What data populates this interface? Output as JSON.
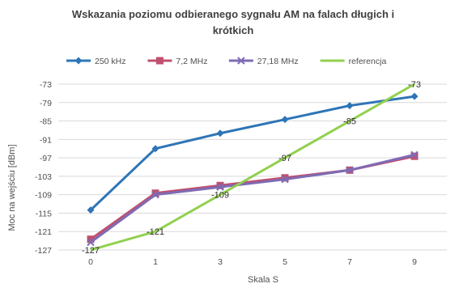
{
  "chart_data": {
    "type": "line",
    "title_line1": "Wskazania poziomu odbieranego sygnału AM na falach długich i",
    "title_line2": "krótkich",
    "xlabel": "Skala S",
    "ylabel": "Moc na wejściu [dBm]",
    "categories": [
      "0",
      "1",
      "3",
      "5",
      "7",
      "9"
    ],
    "ylim": [
      -127,
      -73
    ],
    "yticks": [
      -73,
      -79,
      -85,
      -91,
      -97,
      -103,
      -109,
      -115,
      -121,
      -127
    ],
    "grid": true,
    "legend_position": "top",
    "series": [
      {
        "name": "250 kHz",
        "color": "#2e75b6",
        "marker": "diamond",
        "values": [
          -114,
          -94,
          -89,
          -84.5,
          -80,
          -77
        ]
      },
      {
        "name": "7,2 MHz",
        "color": "#c0506e",
        "marker": "square",
        "values": [
          -123.5,
          -108.5,
          -106,
          -103.5,
          -101,
          -96.5
        ]
      },
      {
        "name": "27,18 MHz",
        "color": "#7e6bb5",
        "marker": "x",
        "values": [
          -124.5,
          -109,
          -106.5,
          -104,
          -101,
          -96
        ]
      },
      {
        "name": "referencja",
        "color": "#92d050",
        "marker": "none",
        "values": [
          -127,
          -121,
          -109,
          -97,
          -85,
          -73
        ],
        "labels": [
          "-127",
          "-121",
          "-109",
          "-97",
          "-85",
          "-73"
        ]
      }
    ]
  }
}
